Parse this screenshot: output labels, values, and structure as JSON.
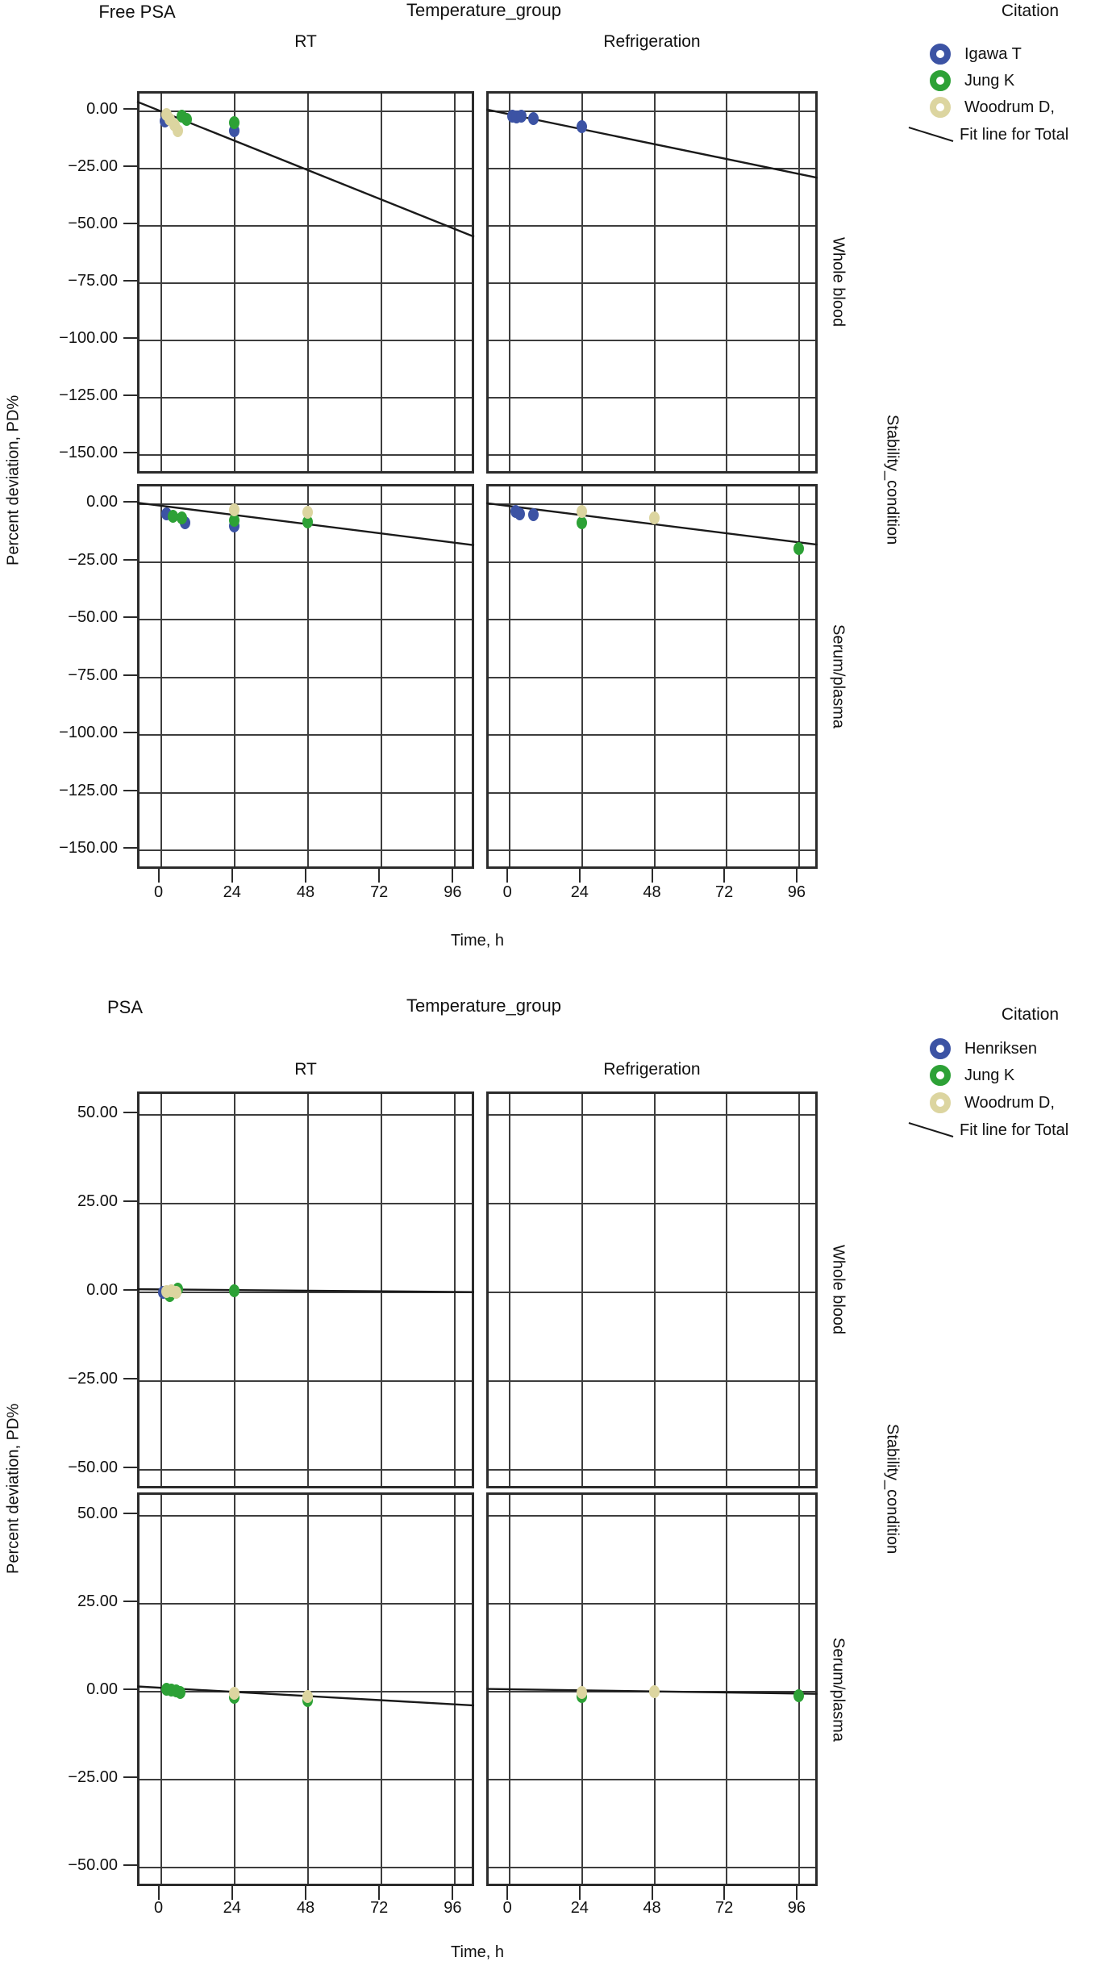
{
  "colors": {
    "igawa_henriksen_blue": "#3C53A4",
    "jung_green": "#2DA136",
    "woodrum_tan": "#DCD5A0",
    "fit_line": "#1a1a1a",
    "grid": "#3d3d3d",
    "panel_border": "#2b2b2b",
    "text": "#111111",
    "background": "#ffffff"
  },
  "chart_data": [
    {
      "type": "scatter",
      "title": "Free PSA",
      "panel_column_variable": "Temperature_group",
      "panel_row_variable": "Stability_condition",
      "column_headers": [
        "RT",
        "Refrigeration"
      ],
      "row_headers": [
        "Whole blood",
        "Serum/plasma"
      ],
      "axes": {
        "x": {
          "label": "Time, h",
          "min": -7,
          "max": 103,
          "ticks": [
            0,
            24,
            48,
            72,
            96
          ]
        },
        "y": {
          "label": "Percent deviation, PD%",
          "min": -159,
          "max": 7.8,
          "ticks": [
            0,
            -25,
            -50,
            -75,
            -100,
            -125,
            -150
          ]
        }
      },
      "legend": {
        "title": "Citation",
        "entries": [
          {
            "label": "Igawa T",
            "color": "#3C53A4"
          },
          {
            "label": "Jung K",
            "color": "#2DA136"
          },
          {
            "label": "Woodrum D,",
            "color": "#DCD5A0"
          }
        ],
        "fit_label": "Fit line for Total"
      },
      "panels": [
        [
          {
            "row": "Whole blood",
            "col": "RT",
            "points": {
              "Igawa T": [
                [
                  1.5,
                  -4
                ],
                [
                  24,
                  -8.5
                ]
              ],
              "Jung K": [
                [
                  7,
                  -2
                ],
                [
                  8.5,
                  -3.5
                ],
                [
                  24,
                  -5
                ]
              ],
              "Woodrum D,": [
                [
                  2,
                  -1.5
                ],
                [
                  3,
                  -3.5
                ],
                [
                  4.5,
                  -6
                ],
                [
                  5.5,
                  -8.5
                ]
              ]
            },
            "fit_line": [
              [
                -7,
                3.2
              ],
              [
                103,
                -55.7
              ]
            ]
          },
          {
            "row": "Whole blood",
            "col": "Refrigeration",
            "points": {
              "Igawa T": [
                [
                  1,
                  -2
                ],
                [
                  2.5,
                  -2.5
                ],
                [
                  4,
                  -2
                ],
                [
                  8,
                  -3
                ],
                [
                  24,
                  -6.5
                ]
              ]
            },
            "fit_line": [
              [
                -7,
                -0.2
              ],
              [
                103,
                -30
              ]
            ]
          }
        ],
        [
          {
            "row": "Serum/plasma",
            "col": "RT",
            "points": {
              "Igawa T": [
                [
                  2,
                  -4
                ],
                [
                  8,
                  -8
                ],
                [
                  24,
                  -9.5
                ]
              ],
              "Jung K": [
                [
                  4,
                  -5
                ],
                [
                  7,
                  -6
                ],
                [
                  24,
                  -7
                ],
                [
                  48,
                  -7.5
                ]
              ],
              "Woodrum D,": [
                [
                  24,
                  -2.5
                ],
                [
                  48,
                  -3.5
                ]
              ]
            },
            "fit_line": [
              [
                -7,
                -0.3
              ],
              [
                103,
                -18.7
              ]
            ]
          },
          {
            "row": "Serum/plasma",
            "col": "Refrigeration",
            "points": {
              "Igawa T": [
                [
                  2,
                  -3
                ],
                [
                  3.5,
                  -4
                ],
                [
                  8,
                  -4.5
                ]
              ],
              "Jung K": [
                [
                  24,
                  -8
                ],
                [
                  96,
                  -19
                ]
              ],
              "Woodrum D,": [
                [
                  24,
                  -3
                ],
                [
                  48,
                  -6
                ]
              ]
            },
            "fit_line": [
              [
                -7,
                -0.5
              ],
              [
                103,
                -18.5
              ]
            ]
          }
        ]
      ]
    },
    {
      "type": "scatter",
      "title": "PSA",
      "panel_column_variable": "Temperature_group",
      "panel_row_variable": "Stability_condition",
      "column_headers": [
        "RT",
        "Refrigeration"
      ],
      "row_headers": [
        "Whole blood",
        "Serum/plasma"
      ],
      "axes": {
        "x": {
          "label": "Time, h",
          "min": -7,
          "max": 103,
          "ticks": [
            0,
            24,
            48,
            72,
            96
          ]
        },
        "y": {
          "label": "Percent deviation, PD%",
          "min": -55.9,
          "max": 55.9,
          "ticks": [
            50,
            25,
            0,
            -25,
            -50
          ]
        }
      },
      "legend": {
        "title": "Citation",
        "entries": [
          {
            "label": "Henriksen",
            "color": "#3C53A4"
          },
          {
            "label": "Jung K",
            "color": "#2DA136"
          },
          {
            "label": "Woodrum D,",
            "color": "#DCD5A0"
          }
        ],
        "fit_label": "Fit line for Total"
      },
      "panels": [
        [
          {
            "row": "Whole blood",
            "col": "RT",
            "points": {
              "Henriksen": [
                [
                  1,
                  0
                ]
              ],
              "Jung K": [
                [
                  3,
                  -0.8
                ],
                [
                  5.5,
                  1
                ],
                [
                  24,
                  0.4
                ]
              ],
              "Woodrum D,": [
                [
                  2,
                  0.2
                ],
                [
                  3.5,
                  0.4
                ],
                [
                  5,
                  0
                ]
              ]
            },
            "fit_line": [
              [
                -7,
                0.2
              ],
              [
                103,
                -0.6
              ]
            ]
          },
          {
            "row": "Whole blood",
            "col": "Refrigeration",
            "points": {},
            "fit_line": null
          }
        ],
        [
          {
            "row": "Serum/plasma",
            "col": "RT",
            "points": {
              "Jung K": [
                [
                  2,
                  0.8
                ],
                [
                  3.5,
                  0.5
                ],
                [
                  5,
                  0.2
                ],
                [
                  6.5,
                  -0.3
                ],
                [
                  24,
                  -1.7
                ],
                [
                  48,
                  -2.6
                ]
              ],
              "Woodrum D,": [
                [
                  24,
                  -0.4
                ],
                [
                  48,
                  -1.3
                ]
              ]
            },
            "fit_line": [
              [
                -7,
                0.8
              ],
              [
                103,
                -4.6
              ]
            ]
          },
          {
            "row": "Serum/plasma",
            "col": "Refrigeration",
            "points": {
              "Jung K": [
                [
                  24,
                  -1.3
                ],
                [
                  96,
                  -1.2
                ]
              ],
              "Woodrum D,": [
                [
                  24,
                  -0.2
                ],
                [
                  48,
                  -0.1
                ]
              ]
            },
            "fit_line": [
              [
                -7,
                0.1
              ],
              [
                103,
                -1.3
              ]
            ]
          }
        ]
      ]
    }
  ]
}
